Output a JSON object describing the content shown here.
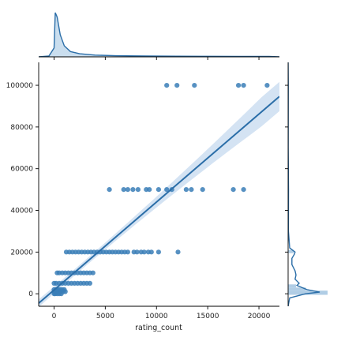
{
  "chart_data": {
    "type": "scatter",
    "title": "",
    "xlabel": "rating_count",
    "ylabel": "",
    "xlim": [
      -1500,
      22000
    ],
    "ylim": [
      -6000,
      111000
    ],
    "x_ticks": [
      0,
      5000,
      10000,
      15000,
      20000
    ],
    "y_ticks": [
      0,
      20000,
      40000,
      60000,
      80000,
      100000
    ],
    "x_tick_labels": [
      "0",
      "5000",
      "10000",
      "15000",
      "20000"
    ],
    "y_tick_labels": [
      "0",
      "20000",
      "40000",
      "60000",
      "80000",
      "100000"
    ],
    "colors": {
      "points": "#3a7eb7",
      "line": "#2b6ea8",
      "band": "#c6daef",
      "hist": "#a7c8e2",
      "axis": "#000000"
    },
    "grid": false,
    "regression": {
      "slope": 4.22,
      "intercept": 1800,
      "ci_half_width_ends": 7000,
      "ci_half_width_center": 1500,
      "ci_center_x": 2500
    },
    "points": [
      [
        11000,
        100000
      ],
      [
        12000,
        100000
      ],
      [
        13700,
        100000
      ],
      [
        18000,
        100000
      ],
      [
        18500,
        100000
      ],
      [
        20800,
        100000
      ],
      [
        5400,
        50000
      ],
      [
        6800,
        50000
      ],
      [
        7200,
        50000
      ],
      [
        7700,
        50000
      ],
      [
        8200,
        50000
      ],
      [
        9000,
        50000
      ],
      [
        9300,
        50000
      ],
      [
        10200,
        50000
      ],
      [
        11000,
        50000
      ],
      [
        11500,
        50000
      ],
      [
        12900,
        50000
      ],
      [
        13400,
        50000
      ],
      [
        14500,
        50000
      ],
      [
        17500,
        50000
      ],
      [
        18500,
        50000
      ],
      [
        1200,
        20000
      ],
      [
        1500,
        20000
      ],
      [
        1800,
        20000
      ],
      [
        2100,
        20000
      ],
      [
        2400,
        20000
      ],
      [
        2700,
        20000
      ],
      [
        3000,
        20000
      ],
      [
        3300,
        20000
      ],
      [
        3600,
        20000
      ],
      [
        3900,
        20000
      ],
      [
        4200,
        20000
      ],
      [
        4500,
        20000
      ],
      [
        4800,
        20000
      ],
      [
        5100,
        20000
      ],
      [
        5400,
        20000
      ],
      [
        5700,
        20000
      ],
      [
        6000,
        20000
      ],
      [
        6300,
        20000
      ],
      [
        6600,
        20000
      ],
      [
        6900,
        20000
      ],
      [
        7200,
        20000
      ],
      [
        7800,
        20000
      ],
      [
        8100,
        20000
      ],
      [
        8500,
        20000
      ],
      [
        8800,
        20000
      ],
      [
        9200,
        20000
      ],
      [
        9500,
        20000
      ],
      [
        10200,
        20000
      ],
      [
        12100,
        20000
      ],
      [
        300,
        10000
      ],
      [
        500,
        10000
      ],
      [
        800,
        10000
      ],
      [
        1100,
        10000
      ],
      [
        1400,
        10000
      ],
      [
        1700,
        10000
      ],
      [
        2000,
        10000
      ],
      [
        2300,
        10000
      ],
      [
        2600,
        10000
      ],
      [
        2900,
        10000
      ],
      [
        3200,
        10000
      ],
      [
        3500,
        10000
      ],
      [
        3800,
        10000
      ],
      [
        0,
        5000
      ],
      [
        200,
        5000
      ],
      [
        500,
        5000
      ],
      [
        800,
        5000
      ],
      [
        1100,
        5000
      ],
      [
        1400,
        5000
      ],
      [
        1700,
        5000
      ],
      [
        2000,
        5000
      ],
      [
        2300,
        5000
      ],
      [
        2600,
        5000
      ],
      [
        2900,
        5000
      ],
      [
        3200,
        5000
      ],
      [
        3500,
        5000
      ],
      [
        0,
        2000
      ],
      [
        200,
        2000
      ],
      [
        400,
        2000
      ],
      [
        600,
        2000
      ],
      [
        800,
        2000
      ],
      [
        1000,
        2000
      ],
      [
        0,
        1000
      ],
      [
        300,
        1000
      ],
      [
        600,
        1000
      ],
      [
        900,
        1000
      ],
      [
        1100,
        1000
      ],
      [
        0,
        0
      ],
      [
        100,
        0
      ],
      [
        300,
        0
      ],
      [
        500,
        0
      ],
      [
        700,
        0
      ]
    ],
    "x_density": [
      [
        -1500,
        0.0
      ],
      [
        -500,
        0.02
      ],
      [
        0,
        0.2
      ],
      [
        120,
        1.0
      ],
      [
        300,
        0.9
      ],
      [
        600,
        0.5
      ],
      [
        1000,
        0.25
      ],
      [
        1600,
        0.12
      ],
      [
        2500,
        0.07
      ],
      [
        4000,
        0.04
      ],
      [
        6000,
        0.025
      ],
      [
        9000,
        0.018
      ],
      [
        12000,
        0.014
      ],
      [
        15000,
        0.012
      ],
      [
        18000,
        0.011
      ],
      [
        21000,
        0.01
      ],
      [
        22000,
        0.0
      ]
    ],
    "y_density": [
      [
        -6000,
        0.0
      ],
      [
        -2000,
        0.05
      ],
      [
        0,
        0.55
      ],
      [
        800,
        1.0
      ],
      [
        2000,
        0.6
      ],
      [
        4000,
        0.28
      ],
      [
        5000,
        0.35
      ],
      [
        7000,
        0.22
      ],
      [
        9000,
        0.25
      ],
      [
        11000,
        0.22
      ],
      [
        14000,
        0.12
      ],
      [
        17000,
        0.12
      ],
      [
        19000,
        0.2
      ],
      [
        20000,
        0.22
      ],
      [
        22000,
        0.05
      ],
      [
        30000,
        0.01
      ],
      [
        50000,
        0.012
      ],
      [
        70000,
        0.003
      ],
      [
        100000,
        0.004
      ],
      [
        111000,
        0.0
      ]
    ],
    "y_hist": [
      {
        "y0": -500,
        "y1": 1500,
        "w": 1.0
      },
      {
        "y0": 1500,
        "y1": 3000,
        "w": 0.45
      },
      {
        "y0": 3000,
        "y1": 4500,
        "w": 0.2
      },
      {
        "y0": 19500,
        "y1": 21000,
        "w": 0.14
      }
    ]
  }
}
